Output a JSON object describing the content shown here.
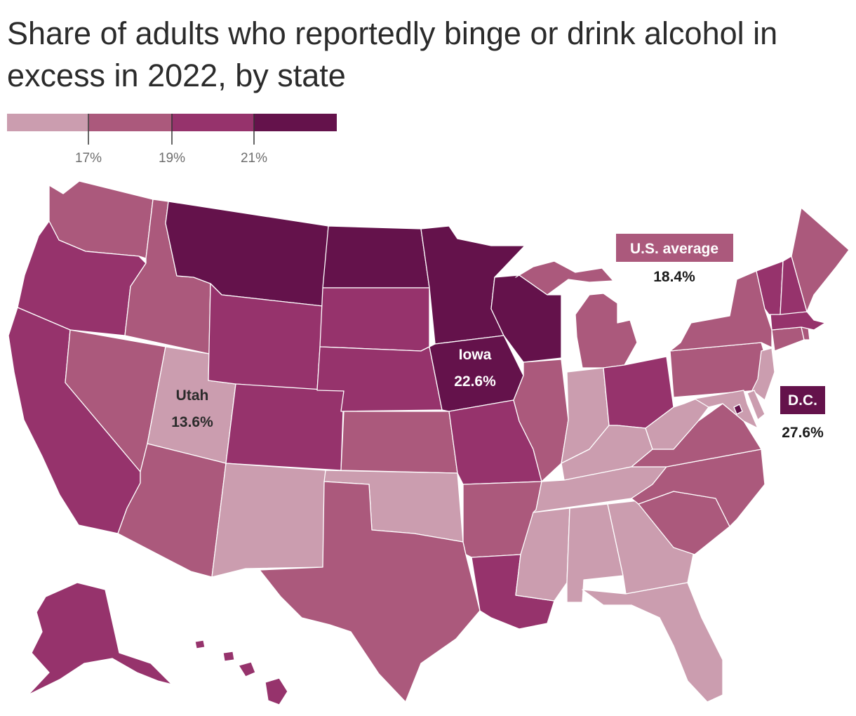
{
  "title": "Share of adults who reportedly binge or drink alcohol in excess in 2022, by state",
  "legend": {
    "bins": [
      {
        "color": "#cb9daf"
      },
      {
        "color": "#ab597c"
      },
      {
        "color": "#96336c"
      },
      {
        "color": "#64124b"
      }
    ],
    "ticks": [
      "17%",
      "19%",
      "21%"
    ]
  },
  "callouts": {
    "utah": {
      "name": "Utah",
      "value": "13.6%"
    },
    "iowa": {
      "name": "Iowa",
      "value": "22.6%"
    },
    "us_average": {
      "name": "U.S. average",
      "value": "18.4%"
    },
    "dc": {
      "name": "D.C.",
      "value": "27.6%"
    }
  },
  "colors": {
    "light": "#cb9daf",
    "mid": "#ab597c",
    "dark": "#96336c",
    "darkest": "#64124b"
  },
  "chart_data": {
    "type": "choropleth",
    "legend_placement": "top-left",
    "bin_breaks": [
      17,
      19,
      21
    ],
    "states": [
      {
        "state": "MT",
        "bin": 3
      },
      {
        "state": "ND",
        "bin": 3
      },
      {
        "state": "MN",
        "bin": 3
      },
      {
        "state": "WI",
        "bin": 3
      },
      {
        "state": "IA",
        "bin": 3,
        "value": 22.6
      },
      {
        "state": "WA",
        "bin": 1
      },
      {
        "state": "OR",
        "bin": 2
      },
      {
        "state": "CA",
        "bin": 2
      },
      {
        "state": "ID",
        "bin": 1
      },
      {
        "state": "NV",
        "bin": 1
      },
      {
        "state": "UT",
        "bin": 0,
        "value": 13.6
      },
      {
        "state": "AZ",
        "bin": 1
      },
      {
        "state": "NM",
        "bin": 0
      },
      {
        "state": "WY",
        "bin": 2
      },
      {
        "state": "CO",
        "bin": 2
      },
      {
        "state": "SD",
        "bin": 2
      },
      {
        "state": "NE",
        "bin": 2
      },
      {
        "state": "KS",
        "bin": 1
      },
      {
        "state": "OK",
        "bin": 0
      },
      {
        "state": "TX",
        "bin": 1
      },
      {
        "state": "MO",
        "bin": 2
      },
      {
        "state": "AR",
        "bin": 1
      },
      {
        "state": "LA",
        "bin": 2
      },
      {
        "state": "IL",
        "bin": 1
      },
      {
        "state": "IN",
        "bin": 0
      },
      {
        "state": "MI",
        "bin": 1
      },
      {
        "state": "OH",
        "bin": 2
      },
      {
        "state": "KY",
        "bin": 0
      },
      {
        "state": "TN",
        "bin": 0
      },
      {
        "state": "MS",
        "bin": 0
      },
      {
        "state": "AL",
        "bin": 0
      },
      {
        "state": "GA",
        "bin": 0
      },
      {
        "state": "FL",
        "bin": 0
      },
      {
        "state": "SC",
        "bin": 1
      },
      {
        "state": "NC",
        "bin": 1
      },
      {
        "state": "VA",
        "bin": 1
      },
      {
        "state": "WV",
        "bin": 0
      },
      {
        "state": "PA",
        "bin": 1
      },
      {
        "state": "NY",
        "bin": 1
      },
      {
        "state": "NJ",
        "bin": 0
      },
      {
        "state": "DE",
        "bin": 0
      },
      {
        "state": "MD",
        "bin": 0
      },
      {
        "state": "CT",
        "bin": 1
      },
      {
        "state": "RI",
        "bin": 1
      },
      {
        "state": "MA",
        "bin": 2
      },
      {
        "state": "VT",
        "bin": 2
      },
      {
        "state": "NH",
        "bin": 2
      },
      {
        "state": "ME",
        "bin": 1
      },
      {
        "state": "AK",
        "bin": 2
      },
      {
        "state": "HI",
        "bin": 2
      },
      {
        "state": "DC",
        "bin": 3,
        "value": 27.6
      }
    ],
    "us_average": 18.4
  }
}
